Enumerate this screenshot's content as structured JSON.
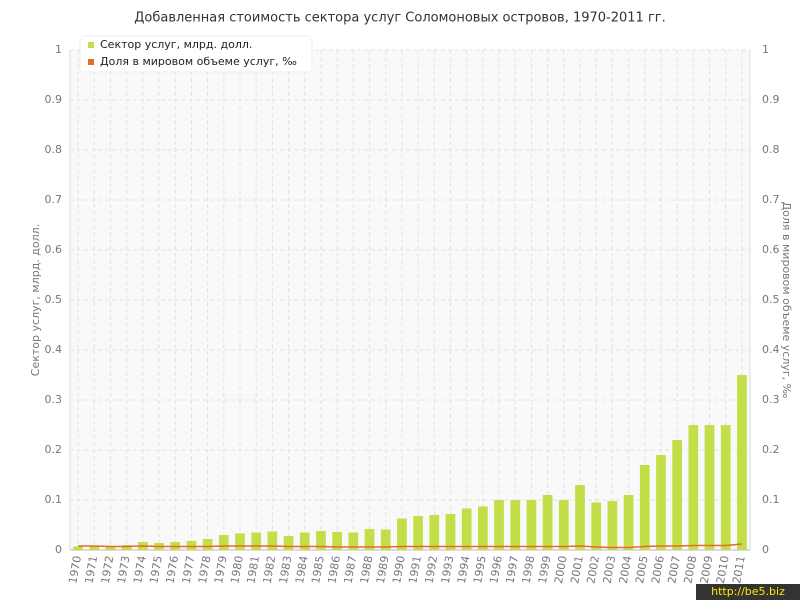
{
  "chart_data": {
    "type": "bar+line",
    "title": "Добавленная стоимость сектора услуг Соломоновых островов, 1970-2011 гг.",
    "y_label": "Сектор услуг, млрд. долл.",
    "y2_label": "Доля в мировом объеме услуг, ‰",
    "categories": [
      "1970",
      "1971",
      "1972",
      "1973",
      "1974",
      "1975",
      "1976",
      "1977",
      "1978",
      "1979",
      "1980",
      "1981",
      "1982",
      "1983",
      "1984",
      "1985",
      "1986",
      "1987",
      "1988",
      "1989",
      "1990",
      "1991",
      "1992",
      "1993",
      "1994",
      "1995",
      "1996",
      "1997",
      "1998",
      "1999",
      "2000",
      "2001",
      "2002",
      "2003",
      "2004",
      "2005",
      "2006",
      "2007",
      "2008",
      "2009",
      "2010",
      "2011"
    ],
    "series": [
      {
        "name": "Сектор услуг, млрд. долл.",
        "color": "#c2df4a",
        "type": "bar",
        "values": [
          0.007,
          0.007,
          0.006,
          0.01,
          0.016,
          0.014,
          0.016,
          0.018,
          0.022,
          0.03,
          0.033,
          0.035,
          0.037,
          0.028,
          0.035,
          0.038,
          0.036,
          0.035,
          0.042,
          0.041,
          0.063,
          0.068,
          0.07,
          0.072,
          0.083,
          0.087,
          0.1,
          0.1,
          0.1,
          0.11,
          0.1,
          0.13,
          0.095,
          0.098,
          0.11,
          0.17,
          0.19,
          0.22,
          0.25,
          0.25,
          0.25,
          0.35
        ]
      },
      {
        "name": "Доля в мировом объеме услуг, ‰",
        "color": "#e36b2c",
        "type": "line",
        "axis": "y2",
        "values": [
          0.008,
          0.008,
          0.007,
          0.007,
          0.008,
          0.007,
          0.007,
          0.007,
          0.007,
          0.008,
          0.008,
          0.008,
          0.008,
          0.007,
          0.007,
          0.007,
          0.006,
          0.006,
          0.006,
          0.006,
          0.007,
          0.007,
          0.007,
          0.007,
          0.007,
          0.007,
          0.007,
          0.007,
          0.007,
          0.007,
          0.007,
          0.008,
          0.006,
          0.005,
          0.005,
          0.007,
          0.008,
          0.008,
          0.009,
          0.009,
          0.009,
          0.012
        ]
      }
    ],
    "ylim": [
      0,
      1
    ],
    "yticks": [
      0,
      0.1,
      0.2,
      0.3,
      0.4,
      0.5,
      0.6,
      0.7,
      0.8,
      0.9,
      1
    ],
    "y2lim": [
      0,
      1
    ],
    "y2ticks": [
      0,
      0.1,
      0.2,
      0.3,
      0.4,
      0.5,
      0.6,
      0.7,
      0.8,
      0.9,
      1
    ],
    "grid": true,
    "legend": "top-left"
  },
  "watermark": "http://be5.biz"
}
